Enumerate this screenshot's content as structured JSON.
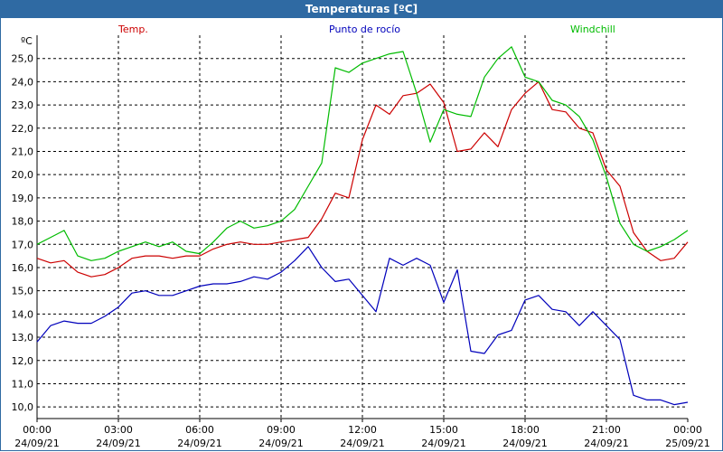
{
  "window": {
    "title": "Temperaturas [ºC]"
  },
  "colors": {
    "temp": "#cc0000",
    "dew": "#0000bb",
    "windchill": "#00bb00",
    "titlebar": "#2f6aa3"
  },
  "chart_data": {
    "type": "line",
    "title": "Temperaturas [ºC]",
    "ylabel": "ºC",
    "xlabel": "",
    "ylim": [
      9.5,
      26.0
    ],
    "grid": true,
    "legend": "top",
    "y_ticks": [
      "10,0",
      "11,0",
      "12,0",
      "13,0",
      "14,0",
      "15,0",
      "16,0",
      "17,0",
      "18,0",
      "19,0",
      "20,0",
      "21,0",
      "22,0",
      "23,0",
      "24,0",
      "25,0"
    ],
    "x_ticks": [
      {
        "time": "00:00",
        "date": "24/09/21"
      },
      {
        "time": "03:00",
        "date": "24/09/21"
      },
      {
        "time": "06:00",
        "date": "24/09/21"
      },
      {
        "time": "09:00",
        "date": "24/09/21"
      },
      {
        "time": "12:00",
        "date": "24/09/21"
      },
      {
        "time": "15:00",
        "date": "24/09/21"
      },
      {
        "time": "18:00",
        "date": "24/09/21"
      },
      {
        "time": "21:00",
        "date": "24/09/21"
      },
      {
        "time": "00:00",
        "date": "25/09/21"
      }
    ],
    "x_hours": [
      0,
      0.5,
      1,
      1.5,
      2,
      2.5,
      3,
      3.5,
      4,
      4.5,
      5,
      5.5,
      6,
      6.5,
      7,
      7.5,
      8,
      8.5,
      9,
      9.5,
      10,
      10.5,
      11,
      11.5,
      12,
      12.5,
      13,
      13.5,
      14,
      14.5,
      15,
      15.5,
      16,
      16.5,
      17,
      17.5,
      18,
      18.5,
      19,
      19.5,
      20,
      20.5,
      21,
      21.5,
      22,
      22.5,
      23,
      23.5,
      24
    ],
    "series": [
      {
        "name": "Temp.",
        "color": "#cc0000",
        "values": [
          16.4,
          16.2,
          16.3,
          15.8,
          15.6,
          15.7,
          16.0,
          16.4,
          16.5,
          16.5,
          16.4,
          16.5,
          16.5,
          16.8,
          17.0,
          17.1,
          17.0,
          17.0,
          17.1,
          17.2,
          17.3,
          18.1,
          19.2,
          19.0,
          21.5,
          23.0,
          22.6,
          23.4,
          23.5,
          23.9,
          23.1,
          21.0,
          21.1,
          21.8,
          21.2,
          22.8,
          23.5,
          24.0,
          22.8,
          22.7,
          22.0,
          21.8,
          20.2,
          19.5,
          17.5,
          16.7,
          16.3,
          16.4,
          17.1
        ],
        "x_hours_note": "same as x_hours"
      },
      {
        "name": "Punto de rocío",
        "color": "#0000bb",
        "values": [
          12.8,
          13.5,
          13.7,
          13.6,
          13.6,
          13.9,
          14.3,
          14.9,
          15.0,
          14.8,
          14.8,
          15.0,
          15.2,
          15.3,
          15.3,
          15.4,
          15.6,
          15.5,
          15.8,
          16.3,
          16.9,
          16.0,
          15.4,
          15.5,
          14.8,
          14.1,
          16.4,
          16.1,
          16.4,
          16.1,
          14.5,
          15.9,
          12.4,
          12.3,
          13.1,
          13.3,
          14.6,
          14.8,
          14.2,
          14.1,
          13.5,
          14.1,
          13.5,
          12.9,
          10.5,
          10.3,
          10.3,
          10.1,
          10.2
        ]
      },
      {
        "name": "Windchill",
        "color": "#00bb00",
        "values": [
          17.0,
          17.3,
          17.6,
          16.5,
          16.3,
          16.4,
          16.7,
          16.9,
          17.1,
          16.9,
          17.1,
          16.7,
          16.6,
          17.1,
          17.7,
          18.0,
          17.7,
          17.8,
          18.0,
          18.5,
          19.5,
          20.5,
          24.6,
          24.4,
          24.8,
          25.0,
          25.2,
          25.3,
          23.5,
          21.4,
          22.8,
          22.6,
          22.5,
          24.2,
          25.0,
          25.5,
          24.2,
          24.0,
          23.2,
          23.0,
          22.5,
          21.5,
          19.9,
          17.9,
          17.0,
          16.7,
          16.9,
          17.2,
          17.6
        ]
      }
    ]
  }
}
